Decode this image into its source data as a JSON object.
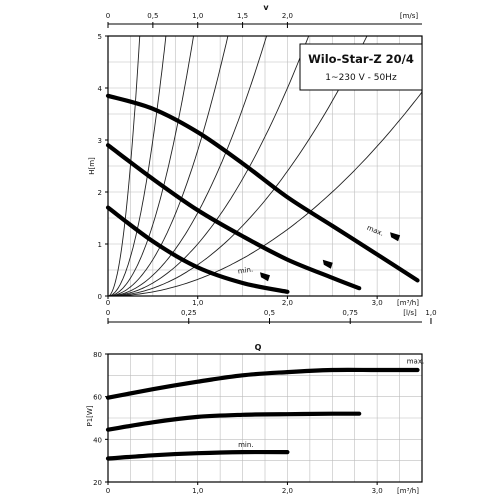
{
  "chart_data": [
    {
      "type": "line",
      "title": "Wilo-Star-Z 20/4",
      "subtitle": "1~230 V - 50Hz",
      "ylabel": "H[m]",
      "xlabel": "Q",
      "xlim": [
        0,
        3.5
      ],
      "ylim": [
        0,
        5
      ],
      "grid": true,
      "x_ticks": [
        0,
        1.0,
        2.0,
        3.0
      ],
      "x_tick_labels": [
        "0",
        "1,0",
        "2,0",
        "3,0"
      ],
      "x_unit": "[m³/h]",
      "y_ticks": [
        0,
        1,
        2,
        3,
        4,
        5
      ],
      "y_tick_labels": [
        "0",
        "1",
        "2",
        "3",
        "4",
        "5"
      ],
      "top_axis": {
        "label": "v",
        "unit": "[m/s]",
        "ticks": [
          0,
          0.5,
          1.0,
          1.5,
          2.0
        ],
        "tick_labels": [
          "0",
          "0,5",
          "1,0",
          "1,5",
          "2,0"
        ],
        "ticks_in_x_units": [
          0,
          0.5,
          1.0,
          1.5,
          2.0
        ]
      },
      "bottom_axis_secondary": {
        "unit": "[l/s]",
        "ticks": [
          0,
          0.25,
          0.5,
          0.75,
          1.0
        ],
        "tick_labels": [
          "0",
          "0,25",
          "0,5",
          "0,75",
          "1,0"
        ],
        "ticks_in_x_units": [
          0,
          0.9,
          1.8,
          2.7,
          3.6
        ]
      },
      "series": [
        {
          "name": "max.",
          "x": [
            0,
            0.5,
            1.0,
            1.5,
            2.0,
            2.5,
            3.0,
            3.45
          ],
          "y": [
            3.85,
            3.6,
            3.15,
            2.55,
            1.9,
            1.35,
            0.8,
            0.3
          ]
        },
        {
          "name": "",
          "x": [
            0,
            0.5,
            1.0,
            1.5,
            2.0,
            2.5,
            2.8
          ],
          "y": [
            2.9,
            2.25,
            1.65,
            1.15,
            0.7,
            0.35,
            0.15
          ]
        },
        {
          "name": "min.",
          "x": [
            0,
            0.5,
            1.0,
            1.5,
            2.0
          ],
          "y": [
            1.7,
            1.05,
            0.55,
            0.25,
            0.08
          ]
        }
      ],
      "system_curves_k": [
        40,
        12,
        5.5,
        2.8,
        1.6,
        1.0,
        0.6,
        0.32
      ],
      "markers": [
        {
          "x": 3.2,
          "y": 1.15
        },
        {
          "x": 2.45,
          "y": 0.62
        },
        {
          "x": 1.75,
          "y": 0.38
        }
      ]
    },
    {
      "type": "line",
      "ylabel": "P1[W]",
      "xlabel": "",
      "xlim": [
        0,
        3.5
      ],
      "ylim": [
        20,
        80
      ],
      "grid": true,
      "x_ticks": [
        0,
        1.0,
        2.0,
        3.0
      ],
      "x_tick_labels": [
        "0",
        "1,0",
        "2,0",
        "3,0"
      ],
      "x_unit": "[m³/h]",
      "y_ticks": [
        20,
        40,
        60,
        80
      ],
      "y_tick_labels": [
        "20",
        "40",
        "60",
        "80"
      ],
      "series": [
        {
          "name": "max.",
          "x": [
            0,
            0.5,
            1.0,
            1.5,
            2.0,
            2.5,
            3.0,
            3.45
          ],
          "y": [
            59.5,
            63.5,
            67,
            70,
            71.5,
            72.5,
            72.5,
            72.5
          ]
        },
        {
          "name": "",
          "x": [
            0,
            0.5,
            1.0,
            1.5,
            2.0,
            2.5,
            2.8
          ],
          "y": [
            44.5,
            48,
            50.5,
            51.5,
            51.8,
            52,
            52
          ]
        },
        {
          "name": "min.",
          "x": [
            0,
            0.5,
            1.0,
            1.5,
            2.0
          ],
          "y": [
            31,
            32.5,
            33.5,
            34,
            34
          ]
        }
      ]
    }
  ]
}
